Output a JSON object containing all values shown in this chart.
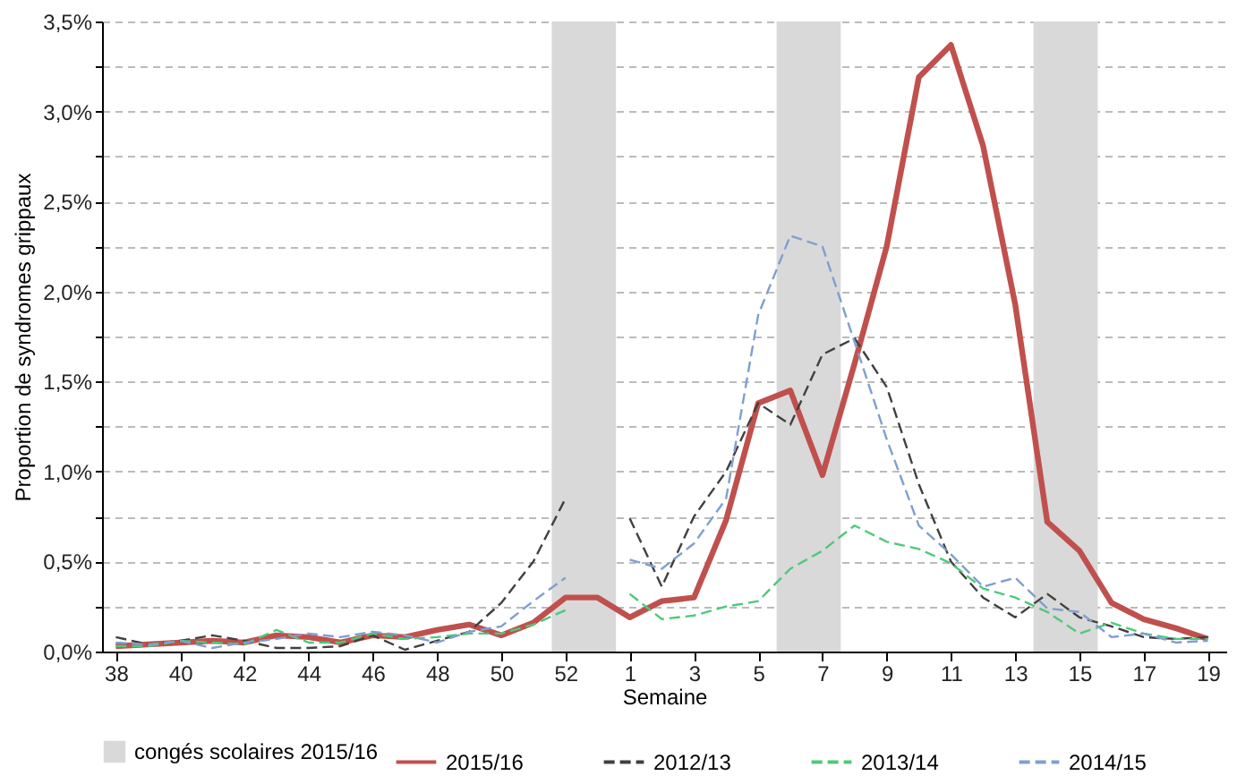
{
  "chart_data": {
    "type": "line",
    "xlabel": "Semaine",
    "ylabel": "Proportion de syndromes grippaux",
    "x": [
      "2015-09-17",
      "2015-09-24",
      "2015-10-01",
      "2015-10-08",
      "2015-10-15",
      "2015-10-22",
      "2015-10-29",
      "2015-11-05",
      "2015-11-12",
      "2015-11-19",
      "2015-11-26",
      "2015-12-03",
      "2015-12-10",
      "2015-12-17",
      "2015-12-24",
      "2015-12-31",
      "2016-01-07",
      "2016-01-14",
      "2016-01-21",
      "2016-01-28",
      "2016-02-04",
      "2016-02-11",
      "2016-02-18",
      "2016-02-25",
      "2016-03-03",
      "2016-03-10",
      "2016-03-17",
      "2016-03-24",
      "2016-03-31",
      "2016-04-07",
      "2016-04-14",
      "2016-04-21",
      "2016-04-28",
      "2016-05-05",
      "2016-05-12"
    ],
    "xlim": [
      "2015-09-14",
      "2016-05-16"
    ],
    "xticks": [
      {
        "value": "2015-09-17",
        "label": "38"
      },
      {
        "value": "2015-10-01",
        "label": "40"
      },
      {
        "value": "2015-10-15",
        "label": "42"
      },
      {
        "value": "2015-10-29",
        "label": "44"
      },
      {
        "value": "2015-11-12",
        "label": "46"
      },
      {
        "value": "2015-11-26",
        "label": "48"
      },
      {
        "value": "2015-12-10",
        "label": "50"
      },
      {
        "value": "2015-12-24",
        "label": "52"
      },
      {
        "value": "2016-01-07",
        "label": "1"
      },
      {
        "value": "2016-01-21",
        "label": "3"
      },
      {
        "value": "2016-02-04",
        "label": "5"
      },
      {
        "value": "2016-02-18",
        "label": "7"
      },
      {
        "value": "2016-03-03",
        "label": "9"
      },
      {
        "value": "2016-03-17",
        "label": "11"
      },
      {
        "value": "2016-03-31",
        "label": "13"
      },
      {
        "value": "2016-04-14",
        "label": "15"
      },
      {
        "value": "2016-04-28",
        "label": "17"
      },
      {
        "value": "2016-05-12",
        "label": "19"
      }
    ],
    "ylim": [
      0,
      3.5
    ],
    "yticks": [
      {
        "value": 0,
        "label": "0,0%"
      },
      {
        "value": 0.25,
        "label": null
      },
      {
        "value": 0.5,
        "label": "0,5%"
      },
      {
        "value": 0.75,
        "label": null
      },
      {
        "value": 1,
        "label": "1,0%"
      },
      {
        "value": 1.25,
        "label": null
      },
      {
        "value": 1.5,
        "label": "1,5%"
      },
      {
        "value": 1.75,
        "label": null
      },
      {
        "value": 2,
        "label": "2,0%"
      },
      {
        "value": 2.25,
        "label": null
      },
      {
        "value": 2.5,
        "label": "2,5%"
      },
      {
        "value": 2.75,
        "label": null
      },
      {
        "value": 3,
        "label": "3,0%"
      },
      {
        "value": 3.25,
        "label": null
      },
      {
        "value": 3.5,
        "label": "3,5%"
      }
    ],
    "grid": "y",
    "legend": "bottom",
    "bands": [
      {
        "axis": "x",
        "from": "2015-12-21",
        "to": "2016-01-04",
        "label": "congés scolaires 2015/16",
        "color": "#d9d9d9"
      },
      {
        "axis": "x",
        "from": "2016-02-08",
        "to": "2016-02-22",
        "color": "#d9d9d9"
      },
      {
        "axis": "x",
        "from": "2016-04-04",
        "to": "2016-04-18",
        "color": "#d9d9d9"
      }
    ],
    "series": [
      {
        "name": "2015/16",
        "type": "line",
        "color": "#c0504d",
        "line_style": "solid",
        "values": [
          0.03,
          0.04,
          0.05,
          0.06,
          0.05,
          0.09,
          0.08,
          0.05,
          0.09,
          0.08,
          0.12,
          0.15,
          0.09,
          0.16,
          0.3,
          0.3,
          0.19,
          0.28,
          0.3,
          0.73,
          1.38,
          1.45,
          0.98,
          1.6,
          2.25,
          3.19,
          3.37,
          2.81,
          1.93,
          0.72,
          0.56,
          0.27,
          0.18,
          0.13,
          0.07
        ]
      },
      {
        "name": "2012/13",
        "type": "line",
        "color": "#404040",
        "line_style": "dashed",
        "values": [
          0.08,
          0.04,
          0.06,
          0.09,
          0.06,
          0.02,
          0.02,
          0.03,
          0.09,
          0.01,
          0.06,
          0.11,
          0.27,
          0.5,
          0.85,
          null,
          0.74,
          0.36,
          0.75,
          1.0,
          1.38,
          1.26,
          1.65,
          1.74,
          1.47,
          0.93,
          0.5,
          0.3,
          0.19,
          0.32,
          0.19,
          0.14,
          0.08,
          0.07,
          0.08
        ]
      },
      {
        "name": "2013/14",
        "type": "line",
        "color": "#4ec97a",
        "line_style": "dashed",
        "values": [
          0.03,
          0.03,
          0.06,
          0.05,
          0.04,
          0.12,
          0.05,
          0.05,
          0.1,
          0.07,
          0.08,
          0.1,
          0.1,
          0.15,
          0.23,
          null,
          0.32,
          0.18,
          0.2,
          0.25,
          0.28,
          0.46,
          0.56,
          0.7,
          0.61,
          0.57,
          0.49,
          0.35,
          0.3,
          0.22,
          0.1,
          0.16,
          0.1,
          0.07,
          0.07
        ]
      },
      {
        "name": "2014/15",
        "type": "line",
        "color": "#7f9fcf",
        "line_style": "dashed",
        "values": [
          0.05,
          0.04,
          0.06,
          0.02,
          0.05,
          0.07,
          0.1,
          0.08,
          0.11,
          0.09,
          0.05,
          0.11,
          0.14,
          0.28,
          0.41,
          null,
          0.51,
          0.46,
          0.6,
          0.85,
          1.87,
          2.31,
          2.25,
          1.72,
          1.18,
          0.7,
          0.54,
          0.36,
          0.41,
          0.24,
          0.22,
          0.08,
          0.1,
          0.05,
          0.06
        ]
      }
    ]
  }
}
